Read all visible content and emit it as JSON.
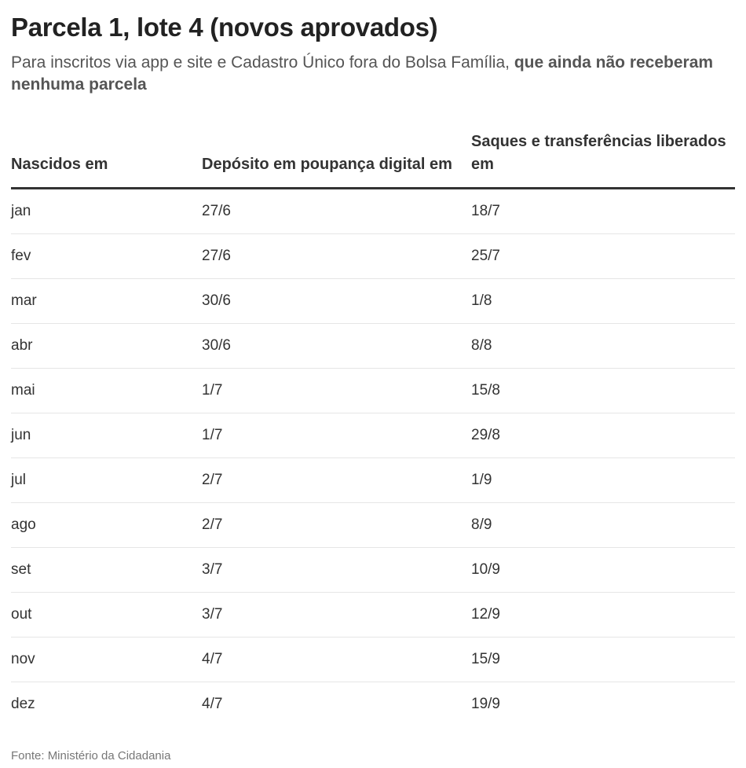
{
  "title": "Parcela 1, lote 4 (novos aprovados)",
  "subtitle": {
    "normal": "Para inscritos via app e site e Cadastro Único fora do Bolsa Família, ",
    "bold": "que ainda não receberam nenhuma parcela"
  },
  "table": {
    "headers": [
      "Nascidos em",
      "Depósito em poupança digital em",
      "Saques e transferências liberados em"
    ],
    "rows": [
      [
        "jan",
        "27/6",
        "18/7"
      ],
      [
        "fev",
        "27/6",
        "25/7"
      ],
      [
        "mar",
        "30/6",
        "1/8"
      ],
      [
        "abr",
        "30/6",
        "8/8"
      ],
      [
        "mai",
        "1/7",
        "15/8"
      ],
      [
        "jun",
        "1/7",
        "29/8"
      ],
      [
        "jul",
        "2/7",
        "1/9"
      ],
      [
        "ago",
        "2/7",
        "8/9"
      ],
      [
        "set",
        "3/7",
        "10/9"
      ],
      [
        "out",
        "3/7",
        "12/9"
      ],
      [
        "nov",
        "4/7",
        "15/9"
      ],
      [
        "dez",
        "4/7",
        "19/9"
      ]
    ]
  },
  "source": "Fonte: Ministério da Cidadania"
}
